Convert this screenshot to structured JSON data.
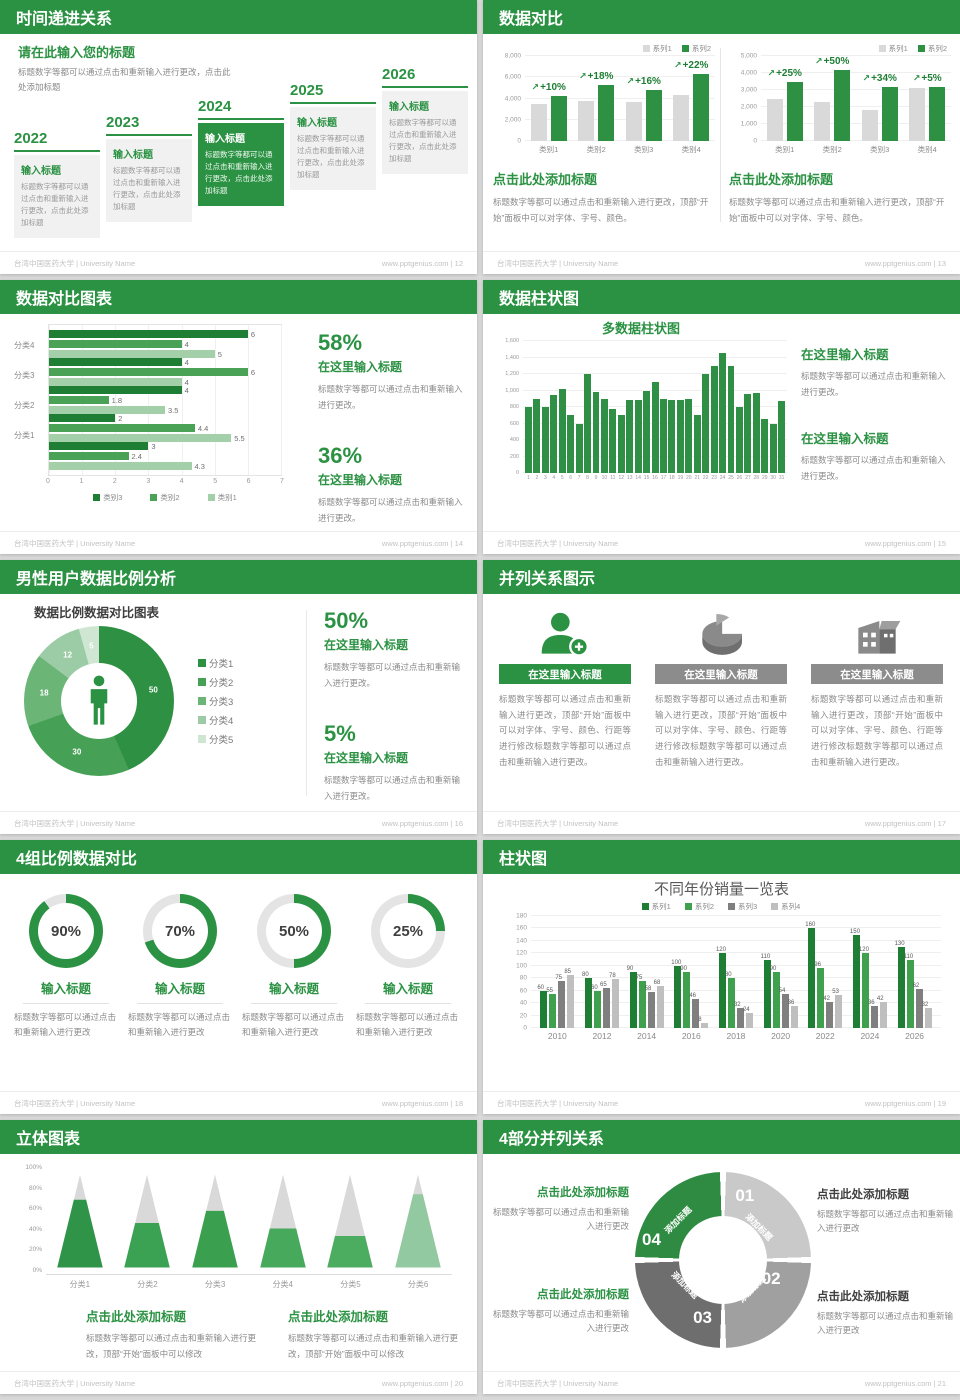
{
  "footer": {
    "university": "台湾中国医药大学 | University Name",
    "site": "www.pptgenius.com"
  },
  "colors": {
    "header_green": "#2b9243",
    "dark_green": "#1e7e34",
    "mid_green": "#2e9043",
    "light_green": "#a3cfa9",
    "gray_bar": "#d9d9d9"
  },
  "slides": [
    {
      "title": "时间递进关系",
      "page": "12",
      "footer_right": "www.pptgenius.com | 12",
      "intro_title": "请在此输入您的标题",
      "intro_body": "标题数字等都可以通过点击和重新输入进行更改，点击此处添加标题",
      "steps": [
        {
          "year": "2022",
          "title": "输入标题",
          "body": "标题数字等都可以通过点击和重新输入进行更改，点击此处添加标题"
        },
        {
          "year": "2023",
          "title": "输入标题",
          "body": "标题数字等都可以通过点击和重新输入进行更改，点击此处添加标题"
        },
        {
          "year": "2024",
          "title": "输入标题",
          "body": "标题数字等都可以通过点击和重新输入进行更改，点击此处添加标题"
        },
        {
          "year": "2025",
          "title": "输入标题",
          "body": "标题数字等都可以通过点击和重新输入进行更改，点击此处添加标题"
        },
        {
          "year": "2026",
          "title": "输入标题",
          "body": "标题数字等都可以通过点击和重新输入进行更改，点击此处添加标题"
        }
      ]
    },
    {
      "title": "数据对比",
      "page": "13",
      "footer_right": "www.pptgenius.com | 13",
      "blocks": [
        {
          "title": "点击此处添加标题",
          "body": "标题数字等都可以通过点击和重新输入进行更改，顶部“开始”面板中可以对字体、字号、颜色。"
        },
        {
          "title": "点击此处添加标题",
          "body": "标题数字等都可以通过点击和重新输入进行更改，顶部“开始”面板中可以对字体、字号、颜色。"
        }
      ]
    },
    {
      "title": "数据对比图表",
      "page": "14",
      "footer_right": "www.pptgenius.com | 14",
      "stats": [
        {
          "pct": "58%",
          "title": "在这里输入标题",
          "body": "标题数字等都可以通过点击和重新输入进行更改。"
        },
        {
          "pct": "36%",
          "title": "在这里输入标题",
          "body": "标题数字等都可以通过点击和重新输入进行更改。"
        }
      ]
    },
    {
      "title": "数据柱状图",
      "page": "15",
      "footer_right": "www.pptgenius.com | 15",
      "chart_title": "多数据柱状图",
      "blocks": [
        {
          "title": "在这里输入标题",
          "body": "标题数字等都可以通过点击和重新输入进行更改。"
        },
        {
          "title": "在这里输入标题",
          "body": "标题数字等都可以通过点击和重新输入进行更改。"
        }
      ]
    },
    {
      "title": "男性用户数据比例分析",
      "page": "16",
      "footer_right": "www.pptgenius.com | 16",
      "chart_title": "数据比例数据对比图表",
      "stats": [
        {
          "pct": "50%",
          "title": "在这里输入标题",
          "body": "标题数字等都可以通过点击和重新输入进行更改。"
        },
        {
          "pct": "5%",
          "title": "在这里输入标题",
          "body": "标题数字等都可以通过点击和重新输入进行更改。"
        }
      ]
    },
    {
      "title": "并列关系图示",
      "page": "17",
      "footer_right": "www.pptgenius.com | 17",
      "columns": [
        {
          "icon": "nurse-add-icon",
          "header": "在这里输入标题",
          "body": "标题数字等都可以通过点击和重新输入进行更改，顶部“开始”面板中可以对字体、字号、颜色、行距等进行修改标题数字等都可以通过点击和重新输入进行更改。"
        },
        {
          "icon": "pie-chart-icon",
          "header": "在这里输入标题",
          "body": "标题数字等都可以通过点击和重新输入进行更改，顶部“开始”面板中可以对字体、字号、颜色、行距等进行修改标题数字等都可以通过点击和重新输入进行更改。"
        },
        {
          "icon": "building-icon",
          "header": "在这里输入标题",
          "body": "标题数字等都可以通过点击和重新输入进行更改，顶部“开始”面板中可以对字体、字号、颜色、行距等进行修改标题数字等都可以通过点击和重新输入进行更改。"
        }
      ]
    },
    {
      "title": "4组比例数据对比",
      "page": "18",
      "footer_right": "www.pptgenius.com | 18",
      "items": [
        {
          "pct": "90%",
          "title": "输入标题",
          "body": "标题数字等都可以通过点击和重新输入进行更改"
        },
        {
          "pct": "70%",
          "title": "输入标题",
          "body": "标题数字等都可以通过点击和重新输入进行更改"
        },
        {
          "pct": "50%",
          "title": "输入标题",
          "body": "标题数字等都可以通过点击和重新输入进行更改"
        },
        {
          "pct": "25%",
          "title": "输入标题",
          "body": "标题数字等都可以通过点击和重新输入进行更改"
        }
      ]
    },
    {
      "title": "柱状图",
      "page": "19",
      "footer_right": "www.pptgenius.com | 19",
      "chart_title": "不同年份销量一览表"
    },
    {
      "title": "立体图表",
      "page": "20",
      "footer_right": "www.pptgenius.com | 20",
      "blocks": [
        {
          "title": "点击此处添加标题",
          "body": "标题数字等都可以通过点击和重新输入进行更改，顶部“开始”面板中可以修改"
        },
        {
          "title": "点击此处添加标题",
          "body": "标题数字等都可以通过点击和重新输入进行更改，顶部“开始”面板中可以修改"
        }
      ]
    },
    {
      "title": "4部分并列关系",
      "page": "21",
      "footer_right": "www.pptgenius.com | 21",
      "blocks": [
        {
          "title": "点击此处添加标题",
          "body": "标题数字等都可以通过点击和重新输入进行更改"
        },
        {
          "title": "点击此处添加标题",
          "body": "标题数字等都可以通过点击和重新输入进行更改"
        },
        {
          "title": "点击此处添加标题",
          "body": "标题数字等都可以通过点击和重新输入进行更改"
        },
        {
          "title": "点击此处添加标题",
          "body": "标题数字等都可以通过点击和重新输入进行更改"
        }
      ]
    }
  ],
  "chart_data": [
    {
      "id": "compare-bar-left",
      "type": "bar",
      "render": "pairbar",
      "categories": [
        "类别1",
        "类别2",
        "类别3",
        "类别4"
      ],
      "series": [
        {
          "name": "系列1",
          "color": "#d9d9d9",
          "values": [
            3500,
            3800,
            3700,
            4300
          ]
        },
        {
          "name": "系列2",
          "color": "#2e9043",
          "values": [
            4200,
            5300,
            4800,
            6300
          ]
        }
      ],
      "growth_labels": [
        "+10%",
        "+18%",
        "+16%",
        "+22%"
      ],
      "ylim": [
        0,
        8000
      ],
      "ytick_step": 2000,
      "legend_position": "top-right"
    },
    {
      "id": "compare-bar-right",
      "type": "bar",
      "render": "pairbar",
      "categories": [
        "类别1",
        "类别2",
        "类别3",
        "类别4"
      ],
      "series": [
        {
          "name": "系列1",
          "color": "#d9d9d9",
          "values": [
            2500,
            2300,
            1800,
            3100
          ]
        },
        {
          "name": "系列2",
          "color": "#2e9043",
          "values": [
            3500,
            4200,
            3200,
            3200
          ]
        }
      ],
      "growth_labels": [
        "+25%",
        "+50%",
        "+34%",
        "+5%"
      ],
      "ylim": [
        0,
        5000
      ],
      "ytick_step": 1000,
      "legend_position": "top-right"
    },
    {
      "id": "horizontal-compare",
      "type": "bar",
      "render": "hbar",
      "orientation": "horizontal",
      "categories": [
        "分类4",
        "分类3",
        "分类2",
        "分类1",
        ""
      ],
      "series": [
        {
          "name": "类别3",
          "color": "#1e7e34",
          "values": [
            6,
            4,
            4,
            2,
            3
          ]
        },
        {
          "name": "类别2",
          "color": "#4aa257",
          "values": [
            4,
            6,
            1.8,
            4.4,
            2.4
          ]
        },
        {
          "name": "类别1",
          "color": "#a3cfa9",
          "values": [
            5,
            4,
            3.5,
            5.5,
            4.3
          ]
        }
      ],
      "xlim": [
        0,
        7
      ],
      "legend_position": "bottom"
    },
    {
      "id": "multi-column",
      "type": "bar",
      "render": "bars31",
      "title": "多数据柱状图",
      "color": "#2f8f44",
      "x": [
        1,
        2,
        3,
        4,
        5,
        6,
        7,
        8,
        9,
        10,
        11,
        12,
        13,
        14,
        15,
        16,
        17,
        18,
        19,
        20,
        21,
        22,
        23,
        24,
        25,
        26,
        27,
        28,
        29,
        30,
        31
      ],
      "values": [
        800,
        900,
        800,
        950,
        1020,
        700,
        600,
        1200,
        980,
        900,
        780,
        700,
        890,
        890,
        1000,
        1100,
        900,
        880,
        880,
        900,
        700,
        1200,
        1300,
        1450,
        1300,
        800,
        960,
        970,
        660,
        600,
        870
      ],
      "ylim": [
        0,
        1600
      ],
      "ytick_step": 200
    },
    {
      "id": "male-ratio-donut",
      "type": "pie",
      "render": "donut",
      "title": "数据比例数据对比图表",
      "labels": [
        "分类1",
        "分类2",
        "分类3",
        "分类4",
        "分类5"
      ],
      "values": [
        50,
        30,
        18,
        12,
        5
      ],
      "colors": [
        "#2e9043",
        "#46a156",
        "#6bb577",
        "#9ccca5",
        "#cfe6d3"
      ],
      "center_icon": "male-person-icon",
      "legend_position": "right"
    },
    {
      "id": "progress-rings",
      "type": "pie",
      "render": "rings",
      "values": [
        90,
        70,
        50,
        25
      ],
      "color": "#2b9243",
      "track": "#e4e4e4"
    },
    {
      "id": "yearly-sales",
      "type": "bar",
      "render": "grouped",
      "title": "不同年份销量一览表",
      "categories": [
        "2010",
        "2012",
        "2014",
        "2016",
        "2018",
        "2020",
        "2022",
        "2024",
        "2026"
      ],
      "series": [
        {
          "name": "系列1",
          "color": "#1e7e34",
          "values": [
            60,
            80,
            90,
            100,
            120,
            110,
            160,
            150,
            130
          ]
        },
        {
          "name": "系列2",
          "color": "#3fa14e",
          "values": [
            55,
            60,
            75,
            90,
            80,
            90,
            96,
            120,
            110
          ]
        },
        {
          "name": "系列3",
          "color": "#7f7f7f",
          "values": [
            75,
            65,
            58,
            46,
            32,
            54,
            42,
            36,
            62
          ]
        },
        {
          "name": "系列4",
          "color": "#bfbfbf",
          "values": [
            85,
            78,
            68,
            8,
            24,
            36,
            53,
            42,
            32
          ]
        }
      ],
      "ylim": [
        0,
        180
      ],
      "ytick_step": 20,
      "data_labels": true,
      "legend_position": "top"
    },
    {
      "id": "cone-chart",
      "type": "bar",
      "render": "cones",
      "style": "3d-cone",
      "categories": [
        "分类1",
        "分类2",
        "分类3",
        "分类4",
        "分类5",
        "分类6"
      ],
      "values": [
        73,
        48,
        61,
        42,
        34,
        79
      ],
      "colors": [
        "#2f9447",
        "#3ca253",
        "#3aa04f",
        "#46a95c",
        "#4cad61",
        "#93c9a0"
      ],
      "cone_bg": "#d9d9d9",
      "ylim": [
        0,
        100
      ],
      "ytick_step": 20,
      "ytick_suffix": "%"
    },
    {
      "id": "quad-parts",
      "type": "pie",
      "render": "quad",
      "segments": [
        {
          "num": "01",
          "label": "添加标题",
          "color": "#c9c9c9"
        },
        {
          "num": "02",
          "label": "添加标题",
          "color": "#a0a0a0"
        },
        {
          "num": "03",
          "label": "添加标题",
          "color": "#6e6e6e"
        },
        {
          "num": "04",
          "label": "添加标题",
          "color": "#2e8b41"
        }
      ]
    }
  ]
}
